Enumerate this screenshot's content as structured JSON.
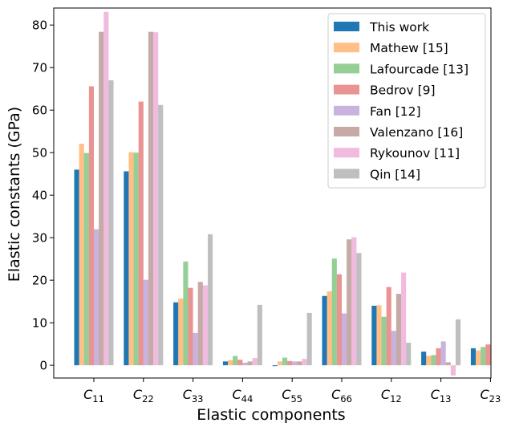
{
  "chart_data": {
    "type": "bar",
    "xlabel": "Elastic components",
    "ylabel": "Elastic constants (GPa)",
    "ylim": [
      -3,
      84
    ],
    "yticks": [
      0,
      10,
      20,
      30,
      40,
      50,
      60,
      70,
      80
    ],
    "legend_position": "top-right",
    "categories": [
      {
        "base": "C",
        "sub": "11"
      },
      {
        "base": "C",
        "sub": "22"
      },
      {
        "base": "C",
        "sub": "33"
      },
      {
        "base": "C",
        "sub": "44"
      },
      {
        "base": "C",
        "sub": "55"
      },
      {
        "base": "C",
        "sub": "66"
      },
      {
        "base": "C",
        "sub": "12"
      },
      {
        "base": "C",
        "sub": "13"
      },
      {
        "base": "C",
        "sub": "23"
      }
    ],
    "series": [
      {
        "name": "This work",
        "color": "#1f77b4",
        "alpha": 1.0,
        "values": [
          46.0,
          45.6,
          14.8,
          0.9,
          -0.2,
          16.3,
          14.0,
          3.2,
          4.0
        ]
      },
      {
        "name": "Mathew [15]",
        "color": "#ff7f0e",
        "alpha": 0.5,
        "values": [
          52.1,
          50.1,
          15.7,
          1.2,
          0.9,
          17.4,
          14.1,
          2.2,
          3.5
        ]
      },
      {
        "name": "Lafourcade [13]",
        "color": "#2ca02c",
        "alpha": 0.5,
        "values": [
          49.9,
          50.0,
          24.4,
          2.2,
          1.8,
          25.1,
          11.4,
          2.4,
          4.3
        ]
      },
      {
        "name": "Bedrov [9]",
        "color": "#d62728",
        "alpha": 0.5,
        "values": [
          65.6,
          62.0,
          18.2,
          1.3,
          1.0,
          21.4,
          18.4,
          4.0,
          4.9
        ]
      },
      {
        "name": "Fan [12]",
        "color": "#9467bd",
        "alpha": 0.5,
        "values": [
          32.0,
          20.1,
          7.6,
          0.6,
          0.9,
          12.2,
          8.1,
          5.6,
          null
        ]
      },
      {
        "name": "Valenzano [16]",
        "color": "#8c564b",
        "alpha": 0.5,
        "values": [
          78.4,
          78.4,
          19.6,
          0.9,
          0.9,
          29.6,
          16.8,
          0.7,
          null
        ]
      },
      {
        "name": "Rykounov [11]",
        "color": "#e377c2",
        "alpha": 0.5,
        "values": [
          83.1,
          78.3,
          18.8,
          1.7,
          1.5,
          30.1,
          21.8,
          -2.4,
          null
        ]
      },
      {
        "name": "Qin [14]",
        "color": "#7f7f7f",
        "alpha": 0.5,
        "values": [
          67.0,
          61.2,
          30.8,
          14.2,
          12.3,
          26.4,
          5.3,
          10.8,
          null
        ]
      }
    ]
  }
}
